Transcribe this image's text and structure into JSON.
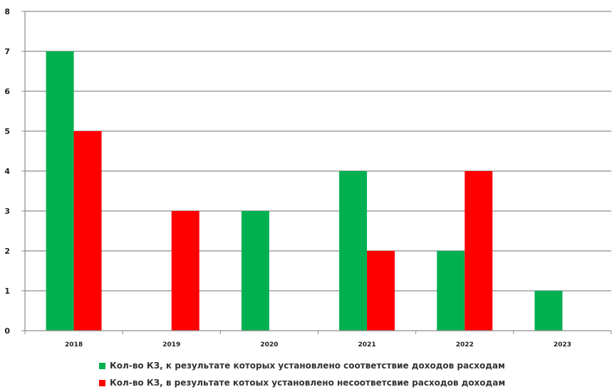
{
  "chart_data": {
    "type": "bar",
    "categories": [
      "2018",
      "2019",
      "2020",
      "2021",
      "2022",
      "2023"
    ],
    "series": [
      {
        "name": "Кол-во КЗ, к результате которых установлено соответствие доходов расходам",
        "color": "#00b050",
        "values": [
          7,
          0,
          3,
          4,
          2,
          1
        ]
      },
      {
        "name": "Кол-во КЗ, в результате котоых установлено несоответсвие расходов доходам",
        "color": "#ff0000",
        "values": [
          5,
          3,
          0,
          2,
          4,
          0
        ]
      }
    ],
    "ylim": [
      0,
      8
    ],
    "yticks": [
      "0",
      "1",
      "2",
      "3",
      "4",
      "5",
      "6",
      "7",
      "8"
    ],
    "grid": true,
    "legend_position": "bottom"
  }
}
